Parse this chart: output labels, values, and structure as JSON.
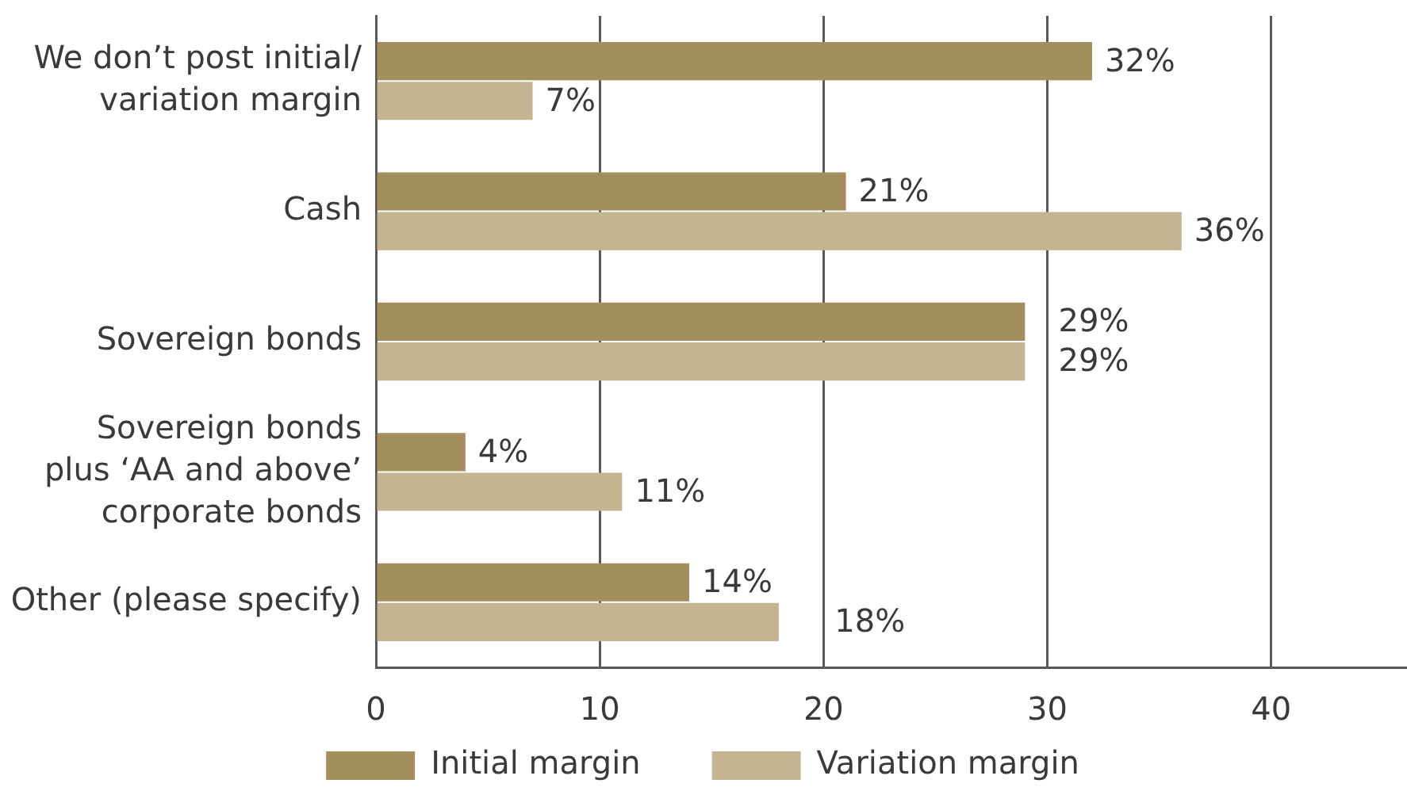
{
  "chart_data": {
    "type": "bar",
    "orientation": "horizontal",
    "categories": [
      "We don’t post initial/\nvariation margin",
      "Cash",
      "Sovereign bonds",
      "Sovereign bonds\nplus ‘AA and above’\ncorporate bonds",
      "Other (please specify)"
    ],
    "series": [
      {
        "name": "Initial margin",
        "color": "#a38f5d",
        "values": [
          32,
          21,
          29,
          4,
          14
        ],
        "value_labels": [
          "32%",
          "21%",
          "29%",
          "4%",
          "14%"
        ]
      },
      {
        "name": "Variation margin",
        "color": "#c4b492",
        "values": [
          7,
          36,
          29,
          11,
          18
        ],
        "value_labels": [
          "7%",
          "36%",
          "29%",
          "11%",
          "18%"
        ]
      }
    ],
    "xlim": [
      0,
      46
    ],
    "xticks": [
      0,
      10,
      20,
      30,
      40
    ],
    "grid": "x",
    "legend": "bottom"
  }
}
